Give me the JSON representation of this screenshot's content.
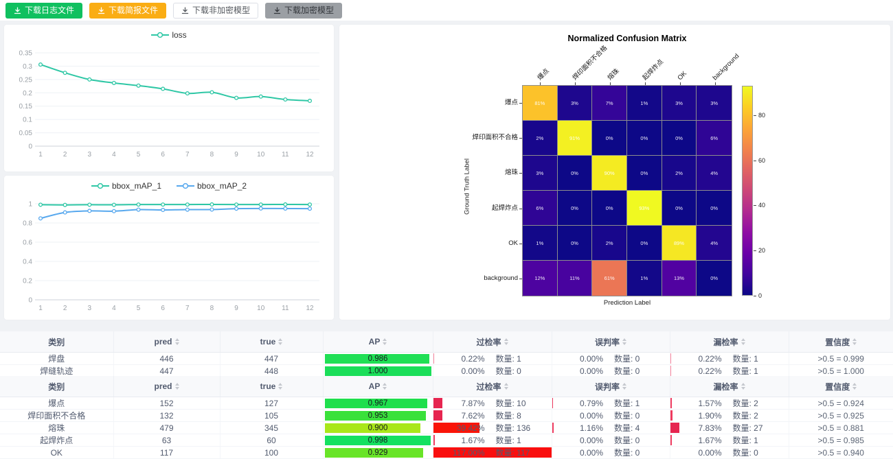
{
  "toolbar": {
    "buttons": [
      {
        "label": "下载日志文件",
        "style": "green"
      },
      {
        "label": "下载简报文件",
        "style": "orange"
      },
      {
        "label": "下载非加密模型",
        "style": "plain"
      },
      {
        "label": "下载加密模型",
        "style": "gray"
      }
    ]
  },
  "chart_data": [
    {
      "type": "line",
      "title": "",
      "x": [
        1,
        2,
        3,
        4,
        5,
        6,
        7,
        8,
        9,
        10,
        11,
        12
      ],
      "series": [
        {
          "name": "loss",
          "color": "#2ec7a5",
          "values": [
            0.306,
            0.275,
            0.25,
            0.237,
            0.227,
            0.215,
            0.198,
            0.202,
            0.181,
            0.186,
            0.175,
            0.17
          ]
        }
      ],
      "ylim": [
        0,
        0.35
      ],
      "ytick_labels": [
        "0",
        "0.05",
        "0.1",
        "0.15",
        "0.2",
        "0.25",
        "0.3",
        "0.35"
      ],
      "legend_position": "top",
      "grid": true
    },
    {
      "type": "line",
      "title": "",
      "x": [
        1,
        2,
        3,
        4,
        5,
        6,
        7,
        8,
        9,
        10,
        11,
        12
      ],
      "series": [
        {
          "name": "bbox_mAP_1",
          "color": "#2ec7a5",
          "values": [
            0.99,
            0.988,
            0.99,
            0.989,
            0.992,
            0.992,
            0.992,
            0.993,
            0.992,
            0.992,
            0.993,
            0.992
          ]
        },
        {
          "name": "bbox_mAP_2",
          "color": "#57a8ee",
          "values": [
            0.848,
            0.91,
            0.926,
            0.923,
            0.939,
            0.936,
            0.939,
            0.94,
            0.949,
            0.951,
            0.95,
            0.949
          ]
        }
      ],
      "ylim": [
        0,
        1
      ],
      "ytick_labels": [
        "0",
        "0.2",
        "0.4",
        "0.6",
        "0.8",
        "1"
      ],
      "legend_position": "top",
      "grid": true
    },
    {
      "type": "heatmap",
      "title": "Normalized Confusion Matrix",
      "xlabel": "Prediction Label",
      "ylabel": "Ground Truth Label",
      "labels": [
        "爆点",
        "焊印面积不合格",
        "熔珠",
        "起焊炸点",
        "OK",
        "background"
      ],
      "rows": [
        [
          81,
          3,
          7,
          1,
          3,
          3
        ],
        [
          2,
          91,
          0,
          0,
          0,
          6
        ],
        [
          3,
          0,
          90,
          0,
          2,
          4
        ],
        [
          6,
          0,
          0,
          93,
          0,
          0
        ],
        [
          1,
          0,
          2,
          0,
          89,
          4
        ],
        [
          12,
          11,
          61,
          1,
          13,
          0
        ]
      ],
      "cell_suffix": "%",
      "vmin": 0,
      "vmax": 93,
      "colormap": "plasma",
      "colorbar_ticks": [
        0,
        20,
        40,
        60,
        80
      ]
    }
  ],
  "tables": [
    {
      "headers": [
        {
          "label": "类别",
          "sortable": false
        },
        {
          "label": "pred",
          "sortable": true
        },
        {
          "label": "true",
          "sortable": true
        },
        {
          "label": "AP",
          "sortable": true
        },
        {
          "label": "过检率",
          "sortable": true
        },
        {
          "label": "误判率",
          "sortable": true
        },
        {
          "label": "漏检率",
          "sortable": true
        },
        {
          "label": "置信度",
          "sortable": true
        }
      ],
      "rows": [
        {
          "name": "焊盘",
          "pred": "446",
          "true": "447",
          "ap": {
            "value": "0.986",
            "pct": 98.6,
            "color": "#20df55"
          },
          "rates": [
            {
              "pct_label": "0.22%",
              "count_label": "数量: 1",
              "pct": 0.6,
              "color": "#f9849d"
            },
            {
              "pct_label": "0.00%",
              "count_label": "数量: 0",
              "pct": 0,
              "color": "#ef3b5f"
            },
            {
              "pct_label": "0.22%",
              "count_label": "数量: 1",
              "pct": 0.6,
              "color": "#f9849d"
            }
          ],
          "conf": ">0.5 = 0.999"
        },
        {
          "name": "焊缝轨迹",
          "pred": "447",
          "true": "448",
          "ap": {
            "value": "1.000",
            "pct": 100,
            "color": "#1bde59"
          },
          "rates": [
            {
              "pct_label": "0.00%",
              "count_label": "数量: 0",
              "pct": 0,
              "color": "#ef3b5f"
            },
            {
              "pct_label": "0.00%",
              "count_label": "数量: 0",
              "pct": 0,
              "color": "#ef3b5f"
            },
            {
              "pct_label": "0.22%",
              "count_label": "数量: 1",
              "pct": 0.6,
              "color": "#f9849d"
            }
          ],
          "conf": ">0.5 = 1.000"
        }
      ]
    },
    {
      "headers": [
        {
          "label": "类别",
          "sortable": false
        },
        {
          "label": "pred",
          "sortable": true
        },
        {
          "label": "true",
          "sortable": true
        },
        {
          "label": "AP",
          "sortable": true
        },
        {
          "label": "过检率",
          "sortable": true
        },
        {
          "label": "误判率",
          "sortable": true
        },
        {
          "label": "漏检率",
          "sortable": true
        },
        {
          "label": "置信度",
          "sortable": true
        }
      ],
      "rows": [
        {
          "name": "爆点",
          "pred": "152",
          "true": "127",
          "ap": {
            "value": "0.967",
            "pct": 96.7,
            "color": "#1fdf4d"
          },
          "rates": [
            {
              "pct_label": "7.87%",
              "count_label": "数量: 10",
              "pct": 7.87,
              "color": "#e62550"
            },
            {
              "pct_label": "0.79%",
              "count_label": "数量: 1",
              "pct": 0.9,
              "color": "#ef3b5f"
            },
            {
              "pct_label": "1.57%",
              "count_label": "数量: 2",
              "pct": 1.6,
              "color": "#ef3b5f"
            }
          ],
          "conf": ">0.5 = 0.924"
        },
        {
          "name": "焊印面积不合格",
          "pred": "132",
          "true": "105",
          "ap": {
            "value": "0.953",
            "pct": 95.3,
            "color": "#3ae13b"
          },
          "rates": [
            {
              "pct_label": "7.62%",
              "count_label": "数量: 8",
              "pct": 7.62,
              "color": "#e62550"
            },
            {
              "pct_label": "0.00%",
              "count_label": "数量: 0",
              "pct": 0,
              "color": "#ef3b5f"
            },
            {
              "pct_label": "1.90%",
              "count_label": "数量: 2",
              "pct": 1.9,
              "color": "#ef3b5f"
            }
          ],
          "conf": ">0.5 = 0.925"
        },
        {
          "name": "熔珠",
          "pred": "479",
          "true": "345",
          "ap": {
            "value": "0.900",
            "pct": 90.0,
            "color": "#a9e71a"
          },
          "rates": [
            {
              "pct_label": "39.42%",
              "count_label": "数量: 136",
              "pct": 39.42,
              "color": "#f91408"
            },
            {
              "pct_label": "1.16%",
              "count_label": "数量: 4",
              "pct": 1.2,
              "color": "#ef3b5f"
            },
            {
              "pct_label": "7.83%",
              "count_label": "数量: 27",
              "pct": 7.83,
              "color": "#e62550"
            }
          ],
          "conf": ">0.5 = 0.881"
        },
        {
          "name": "起焊炸点",
          "pred": "63",
          "true": "60",
          "ap": {
            "value": "0.998",
            "pct": 99.8,
            "color": "#14e160"
          },
          "rates": [
            {
              "pct_label": "1.67%",
              "count_label": "数量: 1",
              "pct": 1.67,
              "color": "#ef3b5f"
            },
            {
              "pct_label": "0.00%",
              "count_label": "数量: 0",
              "pct": 0,
              "color": "#ef3b5f"
            },
            {
              "pct_label": "1.67%",
              "count_label": "数量: 1",
              "pct": 1.67,
              "color": "#ef3b5f"
            }
          ],
          "conf": ">0.5 = 0.985"
        },
        {
          "name": "OK",
          "pred": "117",
          "true": "100",
          "ap": {
            "value": "0.929",
            "pct": 92.9,
            "color": "#69e428"
          },
          "rates": [
            {
              "pct_label": "117.00%",
              "count_label": "数量: 117",
              "pct": 117,
              "color": "#f90f0f"
            },
            {
              "pct_label": "0.00%",
              "count_label": "数量: 0",
              "pct": 0,
              "color": "#ef3b5f"
            },
            {
              "pct_label": "0.00%",
              "count_label": "数量: 0",
              "pct": 0,
              "color": "#ef3b5f"
            }
          ],
          "conf": ">0.5 = 0.940"
        }
      ]
    }
  ]
}
